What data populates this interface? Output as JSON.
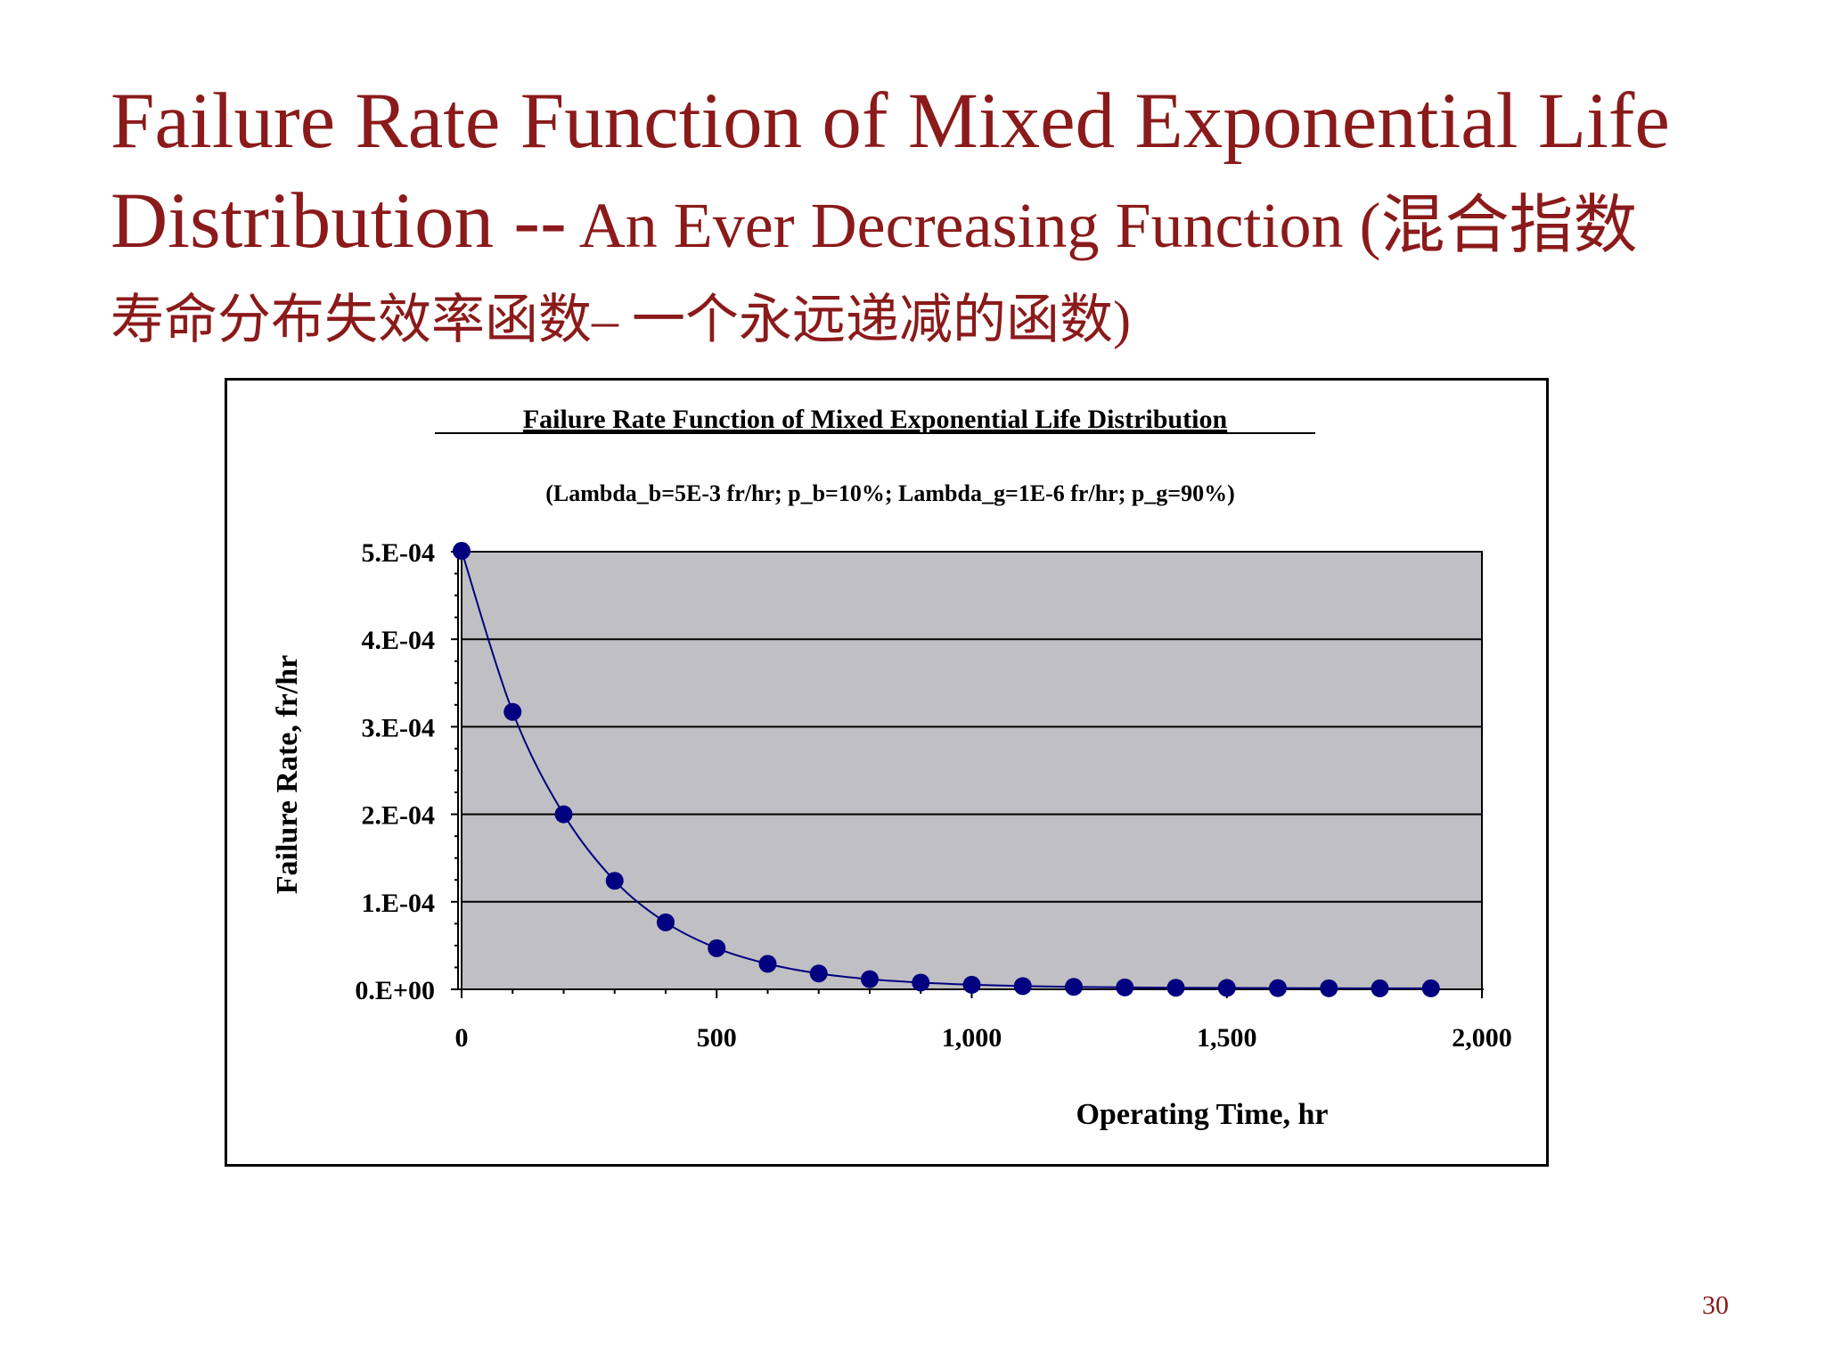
{
  "slide": {
    "title_line1": "Failure Rate Function of Mixed Exponential Life",
    "title_line2_main": "Distribution --",
    "title_line2_sub": " An Ever Decreasing Function (混合指数",
    "title_line3": "寿命分布失效率函数– 一个永远递减的函数)",
    "page_number": "30"
  },
  "colors": {
    "title": "#8b1a1a",
    "plot_background": "#c0bfc3",
    "series": "#000080"
  },
  "chart_data": {
    "type": "line",
    "title": "Failure Rate Function of Mixed Exponential Life Distribution",
    "subtitle": "(Lambda_b=5E-3 fr/hr; p_b=10%;  Lambda_g=1E-6 fr/hr; p_g=90%)",
    "xlabel": "Operating Time, hr",
    "ylabel": "Failure Rate, fr/hr",
    "xlim": [
      0,
      2000
    ],
    "ylim": [
      0,
      0.0005
    ],
    "xticks": [
      {
        "value": 0,
        "label": "0"
      },
      {
        "value": 500,
        "label": "500"
      },
      {
        "value": 1000,
        "label": "1,000"
      },
      {
        "value": 1500,
        "label": "1,500"
      },
      {
        "value": 2000,
        "label": "2,000"
      }
    ],
    "yticks": [
      {
        "value": 0,
        "label": "0.E+00"
      },
      {
        "value": 0.0001,
        "label": "1.E-04"
      },
      {
        "value": 0.0002,
        "label": "2.E-04"
      },
      {
        "value": 0.0003,
        "label": "3.E-04"
      },
      {
        "value": 0.0004,
        "label": "4.E-04"
      },
      {
        "value": 0.0005,
        "label": "5.E-04"
      }
    ],
    "grid": "horizontal",
    "legend": "none",
    "series": [
      {
        "x": [
          0,
          100,
          200,
          300,
          400,
          500,
          600,
          700,
          800,
          900,
          1000,
          1100,
          1200,
          1300,
          1400,
          1500,
          1600,
          1700,
          1800,
          1900
        ],
        "y": [
          0.000501,
          0.000317,
          0.0002,
          0.000124,
          7.65e-05,
          4.7e-05,
          2.91e-05,
          1.81e-05,
          1.16e-05,
          7.7e-06,
          5.2e-06,
          3.7e-06,
          2.8e-06,
          2.2e-06,
          1.8e-06,
          1.6e-06,
          1.4e-06,
          1.2e-06,
          1.1e-06,
          1.1e-06
        ]
      }
    ]
  }
}
